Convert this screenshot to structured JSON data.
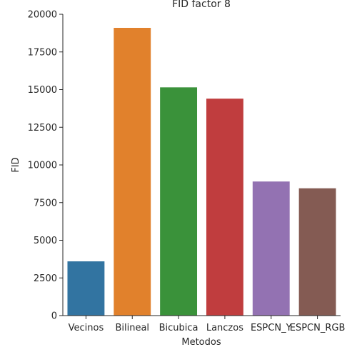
{
  "chart_data": {
    "type": "bar",
    "title": "FID factor 8",
    "xlabel": "Metodos",
    "ylabel": "FID",
    "categories": [
      "Vecinos",
      "Bilineal",
      "Bicubica",
      "Lanczos",
      "ESPCN_Y",
      "ESPCN_RGB"
    ],
    "values": [
      3600,
      19100,
      15150,
      14400,
      8900,
      8450
    ],
    "colors": [
      "#3274a1",
      "#e1812c",
      "#3a923a",
      "#c03d3e",
      "#9372b2",
      "#845b53"
    ],
    "ylim": [
      0,
      20000
    ],
    "yticks": [
      0,
      2500,
      5000,
      7500,
      10000,
      12500,
      15000,
      17500,
      20000
    ],
    "grid": false,
    "legend": "none"
  }
}
